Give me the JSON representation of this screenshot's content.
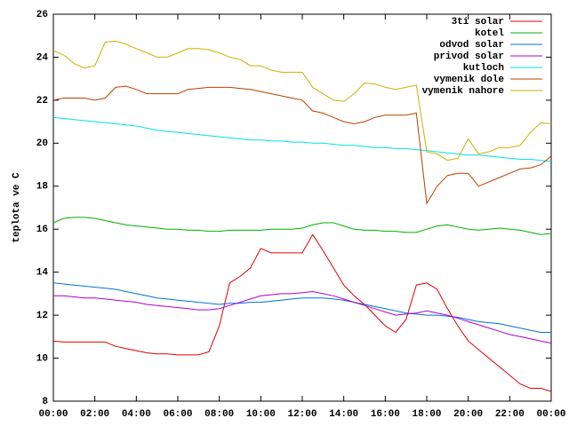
{
  "chart_data": {
    "type": "line",
    "ylabel": "teplota ve C",
    "x": [
      0,
      0.5,
      1,
      1.5,
      2,
      2.5,
      3,
      3.5,
      4,
      4.5,
      5,
      5.5,
      6,
      6.5,
      7,
      7.5,
      8,
      8.5,
      9,
      9.5,
      10,
      10.5,
      11,
      11.5,
      12,
      12.5,
      13,
      13.5,
      14,
      14.5,
      15,
      15.5,
      16,
      16.5,
      17,
      17.5,
      18,
      18.5,
      19,
      19.5,
      20,
      20.5,
      21,
      21.5,
      22,
      22.5,
      23,
      23.5,
      24
    ],
    "xlim": [
      0,
      24
    ],
    "xticks": [
      {
        "value": 0,
        "label": "00:00"
      },
      {
        "value": 2,
        "label": "02:00"
      },
      {
        "value": 4,
        "label": "04:00"
      },
      {
        "value": 6,
        "label": "06:00"
      },
      {
        "value": 8,
        "label": "08:00"
      },
      {
        "value": 10,
        "label": "10:00"
      },
      {
        "value": 12,
        "label": "12:00"
      },
      {
        "value": 14,
        "label": "14:00"
      },
      {
        "value": 16,
        "label": "16:00"
      },
      {
        "value": 18,
        "label": "18:00"
      },
      {
        "value": 20,
        "label": "20:00"
      },
      {
        "value": 22,
        "label": "22:00"
      },
      {
        "value": 24,
        "label": "00:00"
      }
    ],
    "ylim": [
      8,
      26
    ],
    "yticks": [
      8,
      10,
      12,
      14,
      16,
      18,
      20,
      22,
      24,
      26
    ],
    "legend": "top-right",
    "series": [
      {
        "name": "3ti solar",
        "color": "#e00000",
        "values": [
          10.8,
          10.75,
          10.75,
          10.75,
          10.75,
          10.75,
          10.55,
          10.45,
          10.35,
          10.25,
          10.2,
          10.2,
          10.15,
          10.15,
          10.15,
          10.3,
          11.5,
          13.5,
          13.8,
          14.2,
          15.1,
          14.9,
          14.9,
          14.9,
          14.9,
          15.75,
          15.0,
          14.2,
          13.4,
          12.9,
          12.5,
          12.0,
          11.5,
          11.2,
          11.8,
          13.4,
          13.5,
          13.2,
          12.3,
          11.5,
          10.8,
          10.4,
          10.0,
          9.6,
          9.2,
          8.8,
          8.6,
          8.6,
          8.45
        ]
      },
      {
        "name": "kotel",
        "color": "#00b000",
        "values": [
          16.3,
          16.5,
          16.55,
          16.55,
          16.5,
          16.4,
          16.3,
          16.2,
          16.15,
          16.1,
          16.05,
          16.0,
          16.0,
          15.95,
          15.95,
          15.9,
          15.9,
          15.95,
          15.95,
          15.95,
          15.95,
          16.0,
          16.0,
          16.0,
          16.05,
          16.2,
          16.3,
          16.3,
          16.15,
          16.0,
          15.95,
          15.95,
          15.9,
          15.9,
          15.85,
          15.85,
          16.0,
          16.15,
          16.2,
          16.1,
          16.0,
          15.95,
          16.0,
          16.05,
          16.0,
          15.95,
          15.85,
          15.75,
          15.8
        ]
      },
      {
        "name": "odvod solar",
        "color": "#0070e0",
        "values": [
          13.5,
          13.45,
          13.4,
          13.35,
          13.3,
          13.25,
          13.2,
          13.1,
          13.0,
          12.9,
          12.8,
          12.75,
          12.7,
          12.65,
          12.6,
          12.55,
          12.5,
          12.55,
          12.55,
          12.6,
          12.6,
          12.65,
          12.7,
          12.75,
          12.8,
          12.8,
          12.8,
          12.75,
          12.7,
          12.6,
          12.5,
          12.4,
          12.3,
          12.2,
          12.1,
          12.05,
          12.0,
          12.0,
          11.95,
          11.9,
          11.8,
          11.7,
          11.65,
          11.6,
          11.5,
          11.4,
          11.3,
          11.2,
          11.2
        ]
      },
      {
        "name": "privod solar",
        "color": "#b000d0",
        "values": [
          12.9,
          12.9,
          12.85,
          12.8,
          12.8,
          12.75,
          12.7,
          12.65,
          12.6,
          12.5,
          12.45,
          12.4,
          12.35,
          12.3,
          12.25,
          12.25,
          12.3,
          12.45,
          12.6,
          12.75,
          12.9,
          12.95,
          13.0,
          13.0,
          13.05,
          13.1,
          13.0,
          12.9,
          12.75,
          12.6,
          12.45,
          12.3,
          12.15,
          12.0,
          12.05,
          12.1,
          12.2,
          12.1,
          12.0,
          11.85,
          11.7,
          11.55,
          11.4,
          11.25,
          11.1,
          11.0,
          10.9,
          10.8,
          10.7
        ]
      },
      {
        "name": "kutloch",
        "color": "#00e0e0",
        "values": [
          21.2,
          21.15,
          21.1,
          21.05,
          21.0,
          20.95,
          20.9,
          20.85,
          20.8,
          20.7,
          20.6,
          20.55,
          20.5,
          20.45,
          20.4,
          20.35,
          20.3,
          20.25,
          20.2,
          20.15,
          20.15,
          20.1,
          20.1,
          20.05,
          20.05,
          20.0,
          20.0,
          19.95,
          19.9,
          19.9,
          19.85,
          19.8,
          19.8,
          19.75,
          19.75,
          19.7,
          19.65,
          19.6,
          19.55,
          19.5,
          19.45,
          19.45,
          19.4,
          19.35,
          19.3,
          19.25,
          19.25,
          19.2,
          19.15
        ]
      },
      {
        "name": "vymenik dole",
        "color": "#b84000",
        "values": [
          22.0,
          22.1,
          22.1,
          22.1,
          22.0,
          22.1,
          22.6,
          22.65,
          22.5,
          22.3,
          22.3,
          22.3,
          22.3,
          22.5,
          22.55,
          22.6,
          22.6,
          22.6,
          22.55,
          22.5,
          22.4,
          22.3,
          22.2,
          22.1,
          22.0,
          21.5,
          21.4,
          21.2,
          21.0,
          20.9,
          21.0,
          21.2,
          21.3,
          21.3,
          21.3,
          21.4,
          17.2,
          18.0,
          18.5,
          18.6,
          18.6,
          18.0,
          18.2,
          18.4,
          18.6,
          18.8,
          18.85,
          19.0,
          19.4
        ]
      },
      {
        "name": "vymenik nahore",
        "color": "#c8b400",
        "values": [
          24.3,
          24.1,
          23.7,
          23.5,
          23.6,
          24.7,
          24.75,
          24.6,
          24.4,
          24.2,
          24.0,
          24.0,
          24.2,
          24.4,
          24.4,
          24.35,
          24.2,
          24.0,
          23.9,
          23.6,
          23.6,
          23.4,
          23.3,
          23.3,
          23.3,
          22.6,
          22.3,
          22.0,
          21.95,
          22.3,
          22.8,
          22.75,
          22.6,
          22.5,
          22.6,
          22.7,
          19.6,
          19.5,
          19.2,
          19.3,
          20.2,
          19.5,
          19.6,
          19.8,
          19.8,
          19.9,
          20.5,
          20.95,
          20.9
        ]
      }
    ]
  }
}
